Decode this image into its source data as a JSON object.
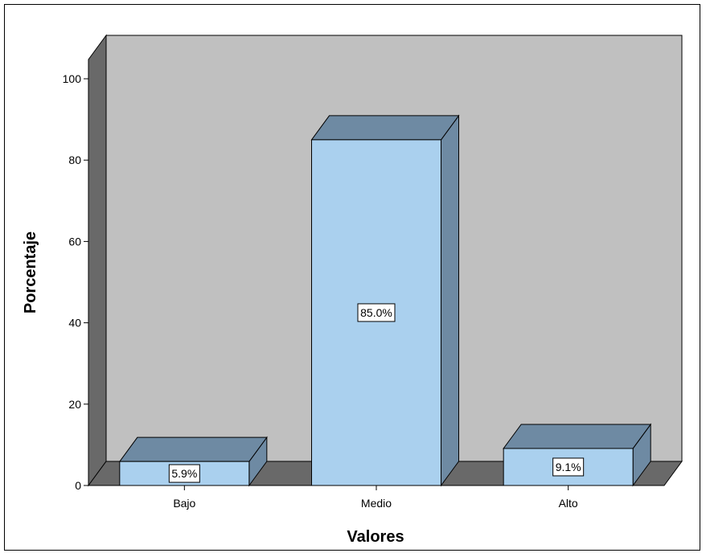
{
  "chart_data": {
    "type": "bar",
    "categories": [
      "Bajo",
      "Medio",
      "Alto"
    ],
    "values": [
      5.9,
      85.0,
      9.1
    ],
    "data_labels": [
      "5.9%",
      "85.0%",
      "9.1%"
    ],
    "xlabel": "Valores",
    "ylabel": "Porcentaje",
    "ylim": [
      0,
      100
    ],
    "yticks": [
      "0",
      "20",
      "40",
      "60",
      "80",
      "100"
    ],
    "grid": false,
    "style": "3d"
  },
  "colors": {
    "back_wall": "#c0c0c0",
    "side_wall": "#696969",
    "floor": "#696969",
    "bar_front": "#aad0ee",
    "bar_top": "#6e8aa3",
    "bar_side": "#6e8aa3",
    "outline": "#000000"
  }
}
